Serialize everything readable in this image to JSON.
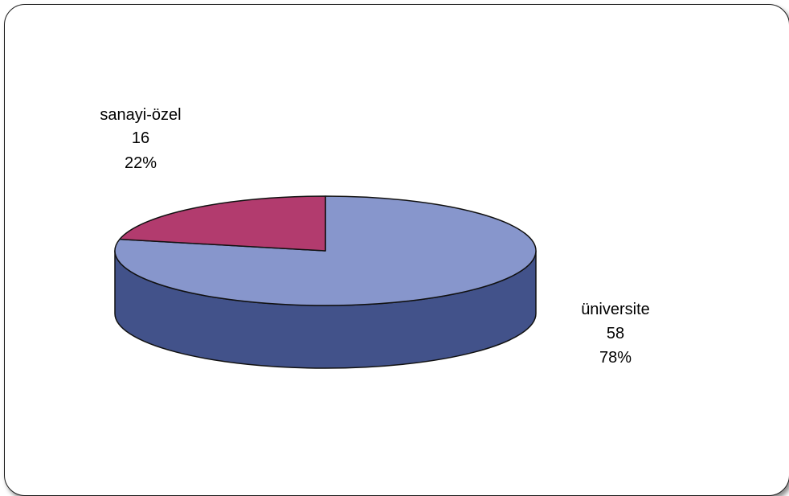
{
  "chart_data": {
    "type": "pie",
    "style": "3d",
    "title": "",
    "slices": [
      {
        "name": "üniversite",
        "value": 58,
        "percent": "78%",
        "color": "#8796cc",
        "side_color": "#42528a"
      },
      {
        "name": "sanayi-özel",
        "value": 16,
        "percent": "22%",
        "color": "#b23b6e",
        "side_color": "#7a1e47"
      }
    ],
    "legend": "none",
    "data_labels": "name, value, percent"
  }
}
